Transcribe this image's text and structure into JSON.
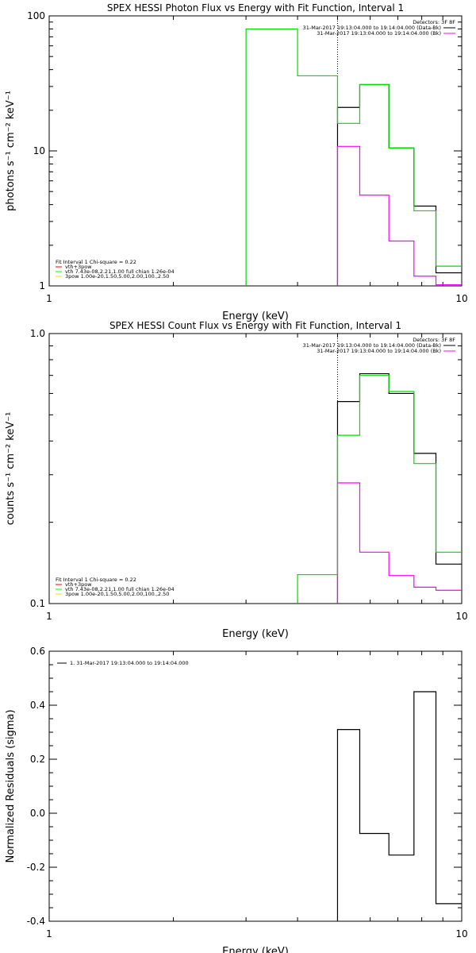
{
  "chart_data": [
    {
      "type": "line",
      "step": true,
      "title": "SPEX HESSI Photon Flux vs Energy with Fit Function, Interval 1",
      "xlabel": "Energy (keV)",
      "ylabel": "photons s⁻¹ cm⁻² keV⁻¹",
      "xscale": "log",
      "yscale": "log",
      "xlim": [
        1,
        10
      ],
      "ylim": [
        1,
        100
      ],
      "x_ticks": [
        "1",
        "10"
      ],
      "y_ticks": [
        "1",
        "10",
        "100"
      ],
      "fit_boundary_keV": 5.0,
      "legend_right": {
        "header": "Detectors: 3F 8F",
        "entries": [
          {
            "label": "31-Mar-2017 19:13:04.000 to 19:14:04.000 (Data-Bk)",
            "color": "#000000"
          },
          {
            "label": "31-Mar-2017 19:13:04.000 to 19:14:04.000 (Bk)",
            "color": "#ff00ff"
          }
        ]
      },
      "legend_left": {
        "header": "Fit Interval 1   Chi-square = 0.22",
        "entries": [
          {
            "label": "vth+3pow",
            "color": "#ff0000"
          },
          {
            "label": "vth 7.43e-08,2.21,1.00  full chian 1.26e-04",
            "color": "#00ff00"
          },
          {
            "label": "3pow 1.00e-20,1.50,5.00,2.00,100.,2.50",
            "color": "#ffd700"
          }
        ]
      },
      "series": [
        {
          "name": "31-Mar-2017 19:13:04.000 to 19:14:04.000 (Data-Bk)",
          "color": "#000000",
          "edges": [
            5.0,
            5.66,
            6.66,
            7.66,
            8.66,
            10.0
          ],
          "values": [
            21,
            31,
            10.5,
            3.9,
            1.25
          ]
        },
        {
          "name": "31-Mar-2017 19:13:04.000 to 19:14:04.000 (Bk)",
          "color": "#ff00ff",
          "edges": [
            5.0,
            5.66,
            6.66,
            7.66,
            8.66,
            10.0
          ],
          "values": [
            10.8,
            4.7,
            2.15,
            1.18,
            1.02
          ]
        },
        {
          "name": "vth+3pow",
          "color": "#00dd00",
          "edges": [
            3.0,
            4.0,
            5.0,
            5.66,
            6.66,
            7.66,
            8.66,
            10.0
          ],
          "values": [
            80,
            36,
            16,
            31,
            10.5,
            3.6,
            1.4
          ]
        }
      ]
    },
    {
      "type": "line",
      "step": true,
      "title": "SPEX HESSI Count Flux vs Energy with Fit Function, Interval 1",
      "xlabel": "Energy (keV)",
      "ylabel": "counts s⁻¹ cm⁻² keV⁻¹",
      "xscale": "log",
      "yscale": "log",
      "xlim": [
        1,
        10
      ],
      "ylim": [
        0.1,
        1.0
      ],
      "x_ticks": [
        "1",
        "10"
      ],
      "y_ticks": [
        "0.1",
        "1.0"
      ],
      "fit_boundary_keV": 5.0,
      "legend_right": {
        "header": "Detectors: 3F 8F",
        "entries": [
          {
            "label": "31-Mar-2017 19:13:04.000 to 19:14:04.000 (Data-Bk)",
            "color": "#000000"
          },
          {
            "label": "31-Mar-2017 19:13:04.000 to 19:14:04.000 (Bk)",
            "color": "#ff00ff"
          }
        ]
      },
      "legend_left": {
        "header": "Fit Interval 1   Chi-square = 0.22",
        "entries": [
          {
            "label": "vth+3pow",
            "color": "#ff0000"
          },
          {
            "label": "vth 7.43e-08,2.21,1.00  full chian 1.26e-04",
            "color": "#00ff00"
          },
          {
            "label": "3pow 1.00e-20,1.50,5.00,2.00,100.,2.50",
            "color": "#ffd700"
          }
        ]
      },
      "series": [
        {
          "name": "31-Mar-2017 19:13:04.000 to 19:14:04.000 (Data-Bk)",
          "color": "#000000",
          "edges": [
            5.0,
            5.66,
            6.66,
            7.66,
            8.66,
            10.0
          ],
          "values": [
            0.56,
            0.71,
            0.6,
            0.36,
            0.14
          ]
        },
        {
          "name": "31-Mar-2017 19:13:04.000 to 19:14:04.000 (Bk)",
          "color": "#ff00ff",
          "edges": [
            5.0,
            5.66,
            6.66,
            7.66,
            8.66,
            10.0
          ],
          "values": [
            0.28,
            0.155,
            0.127,
            0.115,
            0.112
          ]
        },
        {
          "name": "vth+3pow",
          "color": "#00dd00",
          "edges": [
            4.0,
            5.0,
            5.66,
            6.66,
            7.66,
            8.66,
            10.0
          ],
          "values": [
            0.128,
            0.42,
            0.7,
            0.61,
            0.33,
            0.155
          ]
        }
      ]
    },
    {
      "type": "line",
      "step": true,
      "title": "",
      "xlabel": "Energy (keV)",
      "ylabel": "Normalized Residuals (sigma)",
      "xscale": "log",
      "yscale": "linear",
      "xlim": [
        1,
        10
      ],
      "ylim": [
        -0.4,
        0.6
      ],
      "x_ticks": [
        "1",
        "10"
      ],
      "y_ticks": [
        "-0.4",
        "-0.2",
        "0.0",
        "0.2",
        "0.4",
        "0.6"
      ],
      "legend": [
        {
          "label": "1. 31-Mar-2017 19:13:04.000 to 19:14:04.000",
          "color": "#000000"
        }
      ],
      "series": [
        {
          "name": "1. 31-Mar-2017 19:13:04.000 to 19:14:04.000",
          "color": "#000000",
          "edges": [
            5.0,
            5.66,
            6.66,
            7.66,
            8.66,
            10.0
          ],
          "values": [
            0.31,
            -0.075,
            -0.155,
            0.45,
            -0.335
          ]
        }
      ]
    }
  ]
}
